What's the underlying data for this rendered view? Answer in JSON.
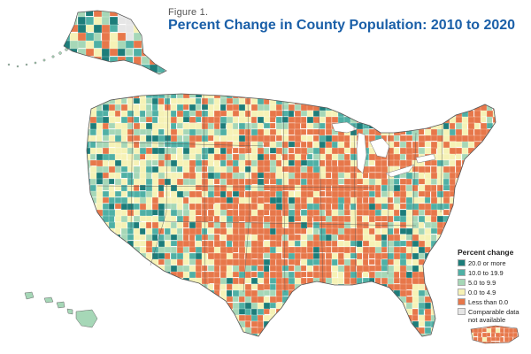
{
  "figure": {
    "label": "Figure 1.",
    "title": "Percent Change in County Population: 2010 to 2020"
  },
  "legend": {
    "title": "Percent change",
    "items": [
      {
        "label": "20.0 or more",
        "color": "#1d7d7a"
      },
      {
        "label": "10.0 to 19.9",
        "color": "#4fb0a5"
      },
      {
        "label": "5.0 to 9.9",
        "color": "#a6d7b7"
      },
      {
        "label": "0.0 to 4.9",
        "color": "#f6f2b6"
      },
      {
        "label": "Less than 0.0",
        "color": "#e7774a"
      },
      {
        "label": "Comparable data not available",
        "color": "#e6e6e6"
      }
    ]
  },
  "colors": {
    "border": "#444444",
    "water": "#ffffff"
  }
}
